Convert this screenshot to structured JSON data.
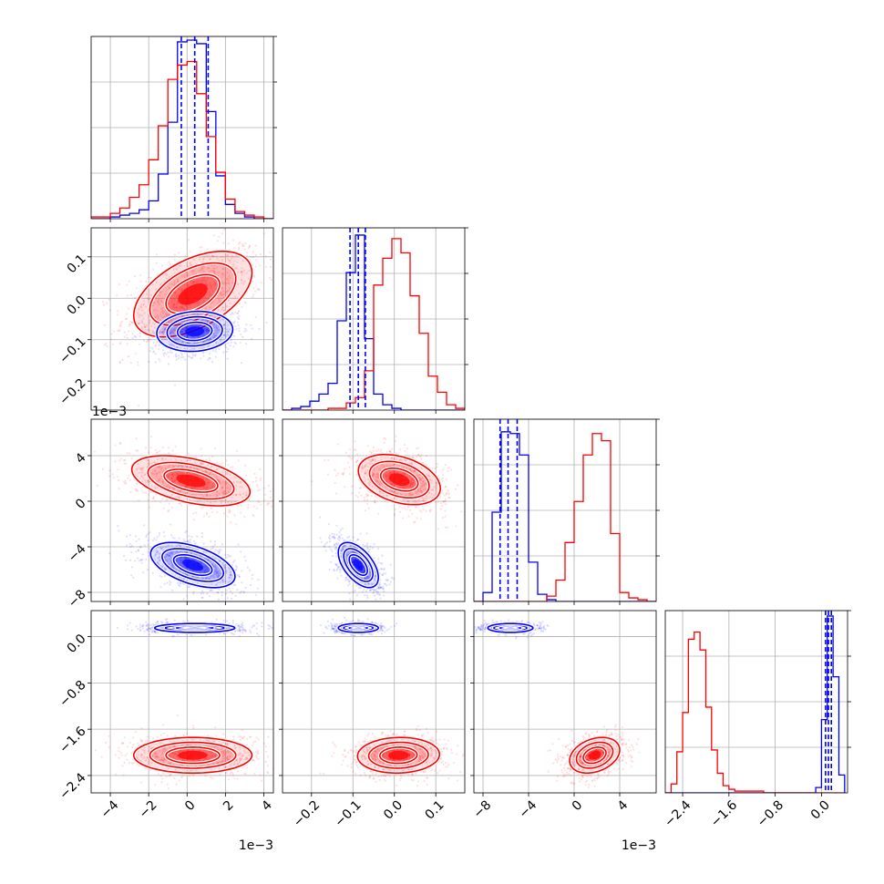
{
  "chart_data": {
    "type": "corner",
    "series": [
      {
        "name": "",
        "color": "#0000ff"
      },
      {
        "name": "",
        "color": "#ff0000"
      }
    ],
    "parameters": [
      {
        "range": [
          -5,
          4.5
        ],
        "ticks": [
          -4,
          -2,
          0,
          2,
          4
        ],
        "tick_labels": [
          "−4",
          "−2",
          "0",
          "2",
          "4"
        ],
        "offset_text": "1e−3"
      },
      {
        "range": [
          -0.27,
          0.17
        ],
        "ticks": [
          -0.2,
          -0.1,
          0.0,
          0.1
        ],
        "tick_labels": [
          "−0.2",
          "−0.1",
          "0.0",
          "0.1"
        ],
        "x_tick_labels": [
          "−0.2",
          "−0.1",
          "0.0",
          "0.1"
        ],
        "offset_text": ""
      },
      {
        "range": [
          -8.8,
          7.2
        ],
        "ticks": [
          -8,
          -4,
          0,
          4
        ],
        "tick_labels": [
          "−8",
          "−4",
          "0",
          "4"
        ],
        "offset_text": "1e−3"
      },
      {
        "range": [
          -2.7,
          0.45
        ],
        "ticks": [
          -2.4,
          -1.6,
          -0.8,
          0.0
        ],
        "tick_labels": [
          "−2.4",
          "−1.6",
          "−0.8",
          "0.0"
        ],
        "offset_text": ""
      }
    ],
    "y_axis_labels": [
      {
        "row": 1,
        "tick_labels": [
          "−0.2",
          "−0.1",
          "0.0",
          "0.1"
        ]
      },
      {
        "row": 2,
        "tick_labels": [
          "−8",
          "−4",
          "0",
          "4"
        ],
        "offset_text": "1e−3"
      },
      {
        "row": 3,
        "tick_labels": [
          "−2.4",
          "−1.6",
          "−0.8",
          "0.0"
        ]
      }
    ],
    "marginals": [
      {
        "param": 0,
        "bin_edges": [
          -5.0,
          -4.5,
          -4.0,
          -3.5,
          -3.0,
          -2.5,
          -2.0,
          -1.5,
          -1.0,
          -0.5,
          0.0,
          0.5,
          1.0,
          1.5,
          2.0,
          2.5,
          3.0,
          3.5,
          4.0,
          4.5
        ],
        "blue": [
          0,
          0,
          0.01,
          0.02,
          0.03,
          0.05,
          0.1,
          0.25,
          0.54,
          0.99,
          1.0,
          0.98,
          0.6,
          0.24,
          0.08,
          0.03,
          0.01,
          0,
          0
        ],
        "red": [
          0.01,
          0.01,
          0.03,
          0.06,
          0.12,
          0.19,
          0.33,
          0.52,
          0.78,
          0.86,
          0.88,
          0.7,
          0.46,
          0.26,
          0.11,
          0.04,
          0.02,
          0.01,
          0
        ],
        "quantiles": [
          -0.3,
          0.4,
          1.1
        ]
      },
      {
        "param": 1,
        "bin_edges": [
          -0.27,
          -0.248,
          -0.226,
          -0.204,
          -0.182,
          -0.16,
          -0.138,
          -0.116,
          -0.094,
          -0.072,
          -0.05,
          -0.028,
          -0.006,
          0.016,
          0.038,
          0.06,
          0.082,
          0.104,
          0.126,
          0.148,
          0.17
        ],
        "blue": [
          0,
          0.01,
          0.02,
          0.05,
          0.09,
          0.15,
          0.5,
          0.77,
          0.98,
          0.4,
          0.09,
          0.03,
          0.01,
          0,
          0,
          0,
          0,
          0,
          0,
          0
        ],
        "red": [
          0,
          0,
          0,
          0,
          0,
          0.01,
          0.01,
          0.04,
          0.07,
          0.22,
          0.7,
          0.85,
          0.96,
          0.88,
          0.64,
          0.43,
          0.19,
          0.1,
          0.03,
          0.01
        ],
        "quantiles": [
          -0.107,
          -0.087,
          -0.07
        ]
      },
      {
        "param": 2,
        "bin_edges": [
          -8.8,
          -8.0,
          -7.2,
          -6.4,
          -5.6,
          -4.8,
          -4.0,
          -3.2,
          -2.4,
          -1.6,
          -0.8,
          0.0,
          0.8,
          1.6,
          2.4,
          3.2,
          4.0,
          4.8,
          5.6,
          6.4,
          7.2
        ],
        "blue": [
          0,
          0.05,
          0.5,
          0.95,
          0.94,
          0.82,
          0.22,
          0.04,
          0.01,
          0,
          0,
          0,
          0,
          0,
          0,
          0,
          0,
          0,
          0,
          0
        ],
        "red": [
          0,
          0,
          0,
          0,
          0,
          0,
          0,
          0,
          0.03,
          0.12,
          0.33,
          0.56,
          0.82,
          0.94,
          0.9,
          0.38,
          0.05,
          0.02,
          0.01,
          0
        ],
        "quantiles": [
          -6.5,
          -5.8,
          -5.0
        ]
      },
      {
        "param": 3,
        "bin_edges": [
          -2.7,
          -2.6,
          -2.5,
          -2.4,
          -2.3,
          -2.2,
          -2.1,
          -2.0,
          -1.9,
          -1.8,
          -1.7,
          -1.6,
          -1.5,
          -1.4,
          -1.3,
          -1.2,
          -1.1,
          -1.0,
          -0.9,
          -0.8,
          -0.7,
          -0.6,
          -0.5,
          -0.4,
          -0.3,
          -0.2,
          -0.1,
          0.0,
          0.1,
          0.2,
          0.3,
          0.4
        ],
        "blue": [
          0,
          0,
          0,
          0,
          0,
          0,
          0,
          0,
          0,
          0,
          0,
          0,
          0,
          0,
          0,
          0,
          0,
          0,
          0,
          0,
          0,
          0,
          0,
          0,
          0,
          0,
          0.03,
          0.41,
          0.99,
          0.65,
          0.1
        ],
        "red": [
          0,
          0.05,
          0.23,
          0.45,
          0.86,
          0.9,
          0.8,
          0.48,
          0.24,
          0.11,
          0.04,
          0.02,
          0.01,
          0.01,
          0.01,
          0.01,
          0.01,
          0,
          0,
          0,
          0,
          0,
          0,
          0,
          0,
          0,
          0,
          0,
          0,
          0,
          0
        ],
        "quantiles": [
          0.07,
          0.12,
          0.17
        ]
      }
    ],
    "joints": [
      {
        "row": 1,
        "col": 0,
        "blue": {
          "mean": [
            0.4,
            -0.08
          ],
          "sd": [
            0.9,
            0.022
          ],
          "rho": 0.1
        },
        "red": {
          "mean": [
            0.3,
            0.01
          ],
          "sd": [
            1.4,
            0.047
          ],
          "rho": 0.5
        }
      },
      {
        "row": 2,
        "col": 0,
        "blue": {
          "mean": [
            0.3,
            -5.6
          ],
          "sd": [
            1.0,
            0.9
          ],
          "rho": -0.5
        },
        "red": {
          "mean": [
            0.2,
            1.8
          ],
          "sd": [
            1.4,
            1.0
          ],
          "rho": -0.45
        }
      },
      {
        "row": 2,
        "col": 1,
        "blue": {
          "mean": [
            -0.087,
            -5.6
          ],
          "sd": [
            0.022,
            0.9
          ],
          "rho": -0.55
        },
        "red": {
          "mean": [
            0.012,
            1.9
          ],
          "sd": [
            0.045,
            1.0
          ],
          "rho": -0.35
        }
      },
      {
        "row": 3,
        "col": 0,
        "blue": {
          "mean": [
            0.4,
            0.15
          ],
          "sd": [
            0.95,
            0.035
          ],
          "rho": 0.0
        },
        "red": {
          "mean": [
            0.3,
            -2.05
          ],
          "sd": [
            1.4,
            0.14
          ],
          "rho": 0.0
        }
      },
      {
        "row": 3,
        "col": 1,
        "blue": {
          "mean": [
            -0.087,
            0.15
          ],
          "sd": [
            0.022,
            0.035
          ],
          "rho": 0.0
        },
        "red": {
          "mean": [
            0.01,
            -2.05
          ],
          "sd": [
            0.045,
            0.14
          ],
          "rho": 0.05
        }
      },
      {
        "row": 3,
        "col": 2,
        "blue": {
          "mean": [
            -5.6,
            0.15
          ],
          "sd": [
            0.9,
            0.035
          ],
          "rho": 0.0
        },
        "red": {
          "mean": [
            1.8,
            -2.05
          ],
          "sd": [
            1.0,
            0.14
          ],
          "rho": 0.3
        }
      }
    ],
    "grid": true,
    "contour_levels_sigma": [
      1.0,
      1.6,
      2.2
    ],
    "scatter_points_per_series": 900
  }
}
